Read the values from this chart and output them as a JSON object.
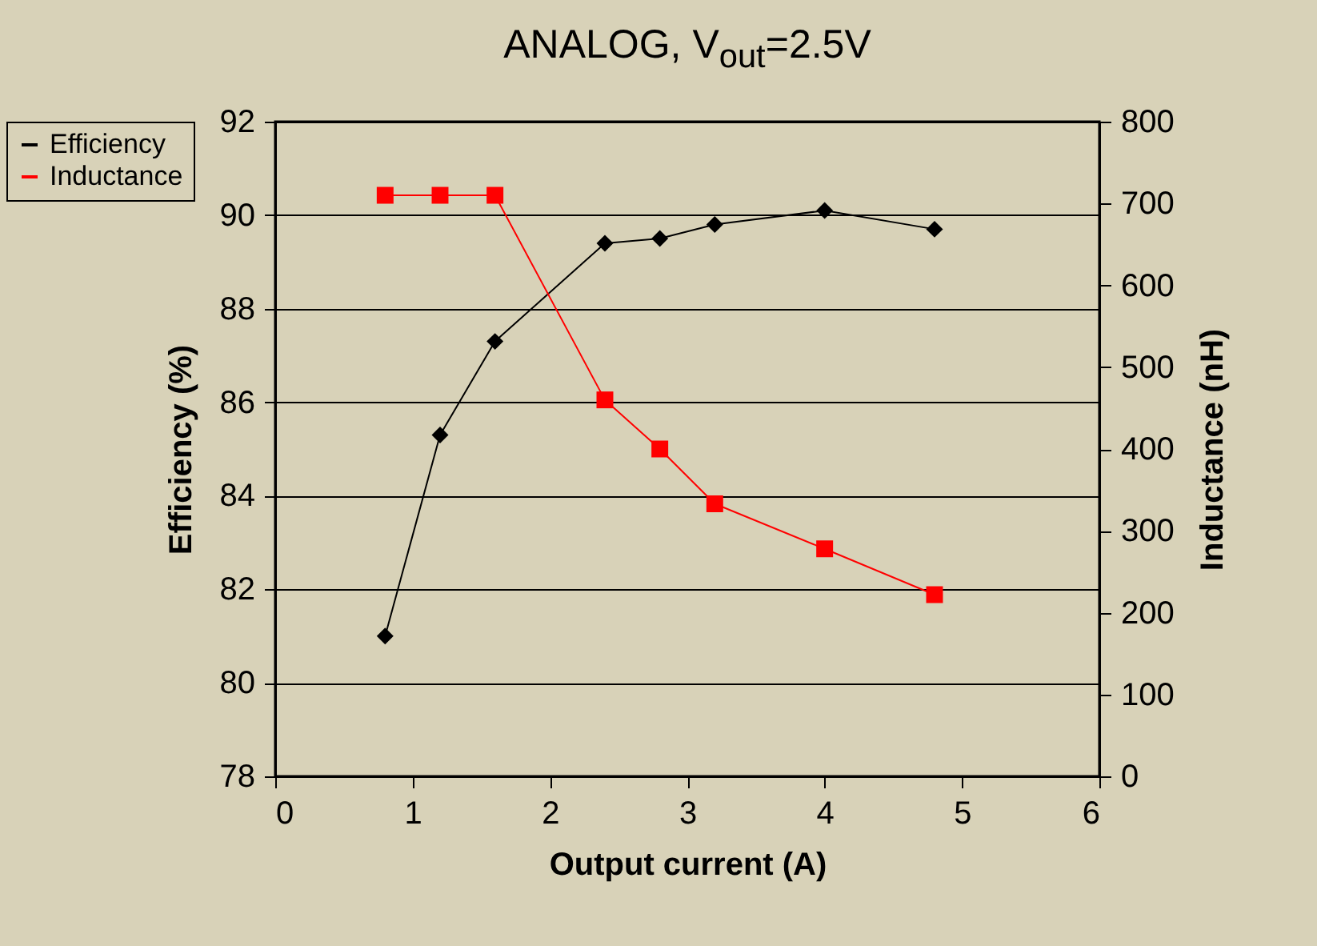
{
  "chart_data": {
    "type": "line",
    "title": "ANALOG, V$_{out}$=2.5V",
    "xlabel": "Output current (A)",
    "ylabel": "Efficiency (%)",
    "y2label": "Inductance (nH)",
    "series": [
      {
        "name": "Efficiency",
        "color": "#000000",
        "marker": "diamond",
        "x": [
          0.8,
          1.2,
          1.6,
          2.4,
          2.8,
          3.2,
          4.0,
          4.8
        ],
        "values": [
          81.0,
          85.3,
          87.3,
          89.4,
          89.5,
          89.8,
          90.1,
          89.7
        ]
      },
      {
        "name": "Inductance",
        "color": "#ff0000",
        "marker": "square",
        "axis": "y2",
        "x": [
          0.8,
          1.2,
          1.6,
          2.4,
          2.8,
          3.2,
          4.0,
          4.8
        ],
        "values": [
          710,
          710,
          710,
          460,
          400,
          333,
          278,
          222
        ]
      }
    ],
    "xlim": [
      0,
      6
    ],
    "xticks": [
      0,
      1,
      2,
      3,
      4,
      5,
      6
    ],
    "ylim": [
      78,
      92
    ],
    "yticks": [
      78,
      80,
      82,
      84,
      86,
      88,
      90,
      92
    ],
    "y2lim": [
      0,
      800
    ],
    "y2ticks": [
      0,
      100,
      200,
      300,
      400,
      500,
      600,
      700,
      800
    ],
    "grid": "y",
    "legend": "left"
  }
}
